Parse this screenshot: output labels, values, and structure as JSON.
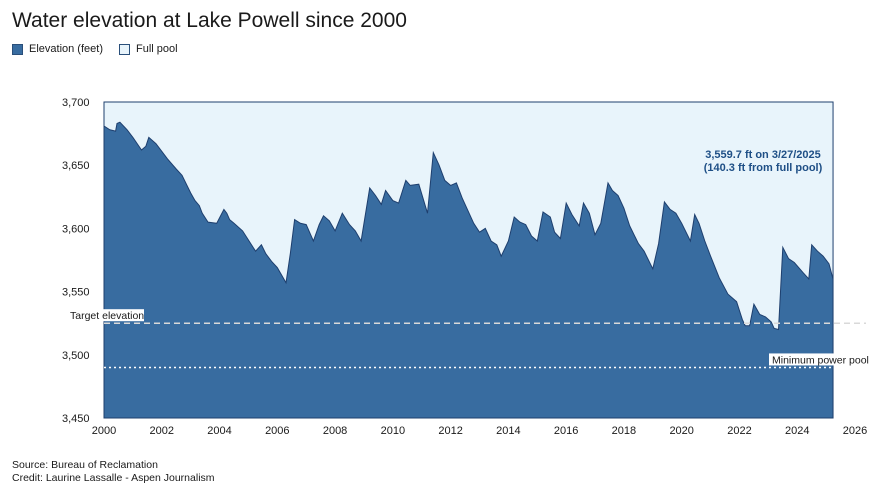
{
  "title": "Water elevation at Lake Powell since 2000",
  "legend": [
    {
      "label": "Elevation (feet)",
      "color": "#386ca0"
    },
    {
      "label": "Full pool",
      "color": "#e8f4fb"
    }
  ],
  "source": "Source: Bureau of Reclamation",
  "credit": "Credit: Laurine Lassalle - Aspen Journalism",
  "chart_data": {
    "type": "area",
    "title": "Water elevation at Lake Powell since 2000",
    "xlabel": "",
    "ylabel": "",
    "xlim": [
      2000,
      2026
    ],
    "ylim": [
      3450,
      3700
    ],
    "x_ticks": [
      "2000",
      "2002",
      "2004",
      "2006",
      "2008",
      "2010",
      "2012",
      "2014",
      "2016",
      "2018",
      "2020",
      "2022",
      "2024",
      "2026"
    ],
    "y_ticks": [
      "3,450",
      "3,500",
      "3,550",
      "3,600",
      "3,650",
      "3,700"
    ],
    "full_pool": 3700,
    "colors": {
      "area": "#386ca0",
      "full_pool": "#e8f4fb",
      "outline": "#1e3f6e"
    },
    "series": [
      {
        "name": "Elevation (feet)",
        "x": [
          2000.0,
          2000.2,
          2000.4,
          2000.45,
          2000.55,
          2000.8,
          2001.0,
          2001.3,
          2001.45,
          2001.55,
          2001.8,
          2002.2,
          2002.5,
          2002.7,
          2003.0,
          2003.15,
          2003.3,
          2003.4,
          2003.6,
          2003.9,
          2004.15,
          2004.25,
          2004.35,
          2004.5,
          2004.8,
          2005.25,
          2005.45,
          2005.6,
          2005.8,
          2006.0,
          2006.3,
          2006.45,
          2006.6,
          2006.8,
          2007.0,
          2007.25,
          2007.45,
          2007.6,
          2007.8,
          2008.0,
          2008.25,
          2008.5,
          2008.7,
          2008.9,
          2009.2,
          2009.4,
          2009.6,
          2009.75,
          2010.0,
          2010.2,
          2010.45,
          2010.6,
          2010.9,
          2011.2,
          2011.4,
          2011.6,
          2011.8,
          2012.0,
          2012.2,
          2012.4,
          2012.8,
          2013.0,
          2013.2,
          2013.4,
          2013.6,
          2013.75,
          2014.0,
          2014.2,
          2014.4,
          2014.6,
          2014.8,
          2015.0,
          2015.2,
          2015.45,
          2015.6,
          2015.8,
          2016.0,
          2016.2,
          2016.45,
          2016.6,
          2016.8,
          2017.0,
          2017.2,
          2017.45,
          2017.6,
          2017.8,
          2018.0,
          2018.2,
          2018.5,
          2018.7,
          2019.0,
          2019.2,
          2019.4,
          2019.6,
          2019.8,
          2020.0,
          2020.3,
          2020.45,
          2020.6,
          2020.8,
          2021.0,
          2021.3,
          2021.6,
          2021.9,
          2022.1,
          2022.2,
          2022.35,
          2022.5,
          2022.7,
          2022.9,
          2023.1,
          2023.2,
          2023.35,
          2023.5,
          2023.7,
          2023.9,
          2024.2,
          2024.4,
          2024.5,
          2024.7,
          2024.9,
          2025.1,
          2025.24
        ],
        "values": [
          3681,
          3678,
          3677,
          3683,
          3684,
          3678,
          3672,
          3662,
          3665,
          3672,
          3667,
          3655,
          3647,
          3642,
          3628,
          3622,
          3618,
          3612,
          3605,
          3604,
          3615,
          3612,
          3607,
          3604,
          3598,
          3582,
          3587,
          3580,
          3574,
          3569,
          3557,
          3580,
          3607,
          3604,
          3603,
          3590,
          3603,
          3610,
          3606,
          3598,
          3612,
          3603,
          3598,
          3590,
          3632,
          3626,
          3619,
          3630,
          3622,
          3620,
          3638,
          3634,
          3635,
          3612,
          3660,
          3650,
          3638,
          3634,
          3636,
          3624,
          3604,
          3597,
          3600,
          3590,
          3587,
          3578,
          3590,
          3609,
          3605,
          3603,
          3594,
          3590,
          3613,
          3609,
          3597,
          3592,
          3620,
          3611,
          3602,
          3620,
          3612,
          3595,
          3604,
          3636,
          3630,
          3626,
          3616,
          3602,
          3588,
          3582,
          3568,
          3588,
          3621,
          3615,
          3612,
          3604,
          3590,
          3611,
          3604,
          3590,
          3578,
          3561,
          3548,
          3542,
          3528,
          3523,
          3523,
          3540,
          3532,
          3530,
          3526,
          3521,
          3520,
          3585,
          3576,
          3573,
          3565,
          3560,
          3587,
          3582,
          3578,
          3572,
          3560
        ]
      }
    ],
    "reference_lines": [
      {
        "label": "Target elevation",
        "value": 3525,
        "style": "dashed"
      },
      {
        "label": "Minimum power pool",
        "value": 3490,
        "style": "dotted"
      }
    ],
    "annotation": {
      "line1": "3,559.7 ft on 3/27/2025",
      "line2": "(140.3 ft from full pool)"
    }
  }
}
